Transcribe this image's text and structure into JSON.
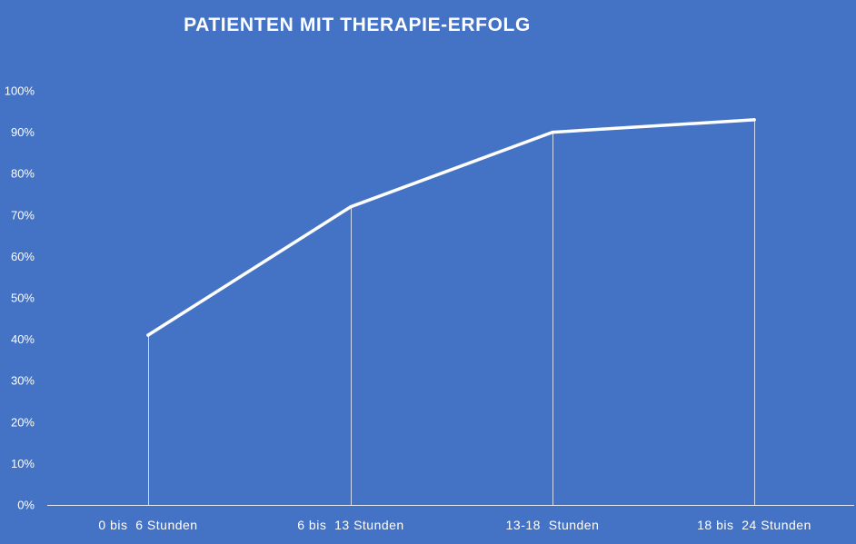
{
  "chart_data": {
    "type": "line",
    "title": "PATIENTEN  MIT THERAPIE-ERFOLG",
    "categories": [
      "0 bis  6 Stunden",
      "6 bis  13 Stunden",
      "13-18  Stunden",
      "18 bis  24 Stunden"
    ],
    "series": [
      {
        "values": [
          41,
          72,
          90,
          93
        ]
      }
    ],
    "y_ticks": [
      "0%",
      "10%",
      "20%",
      "30%",
      "40%",
      "50%",
      "60%",
      "70%",
      "80%",
      "90%",
      "100%"
    ],
    "ylim": [
      0,
      100
    ],
    "y_unit": "%",
    "grid": false,
    "legend": "none",
    "drop_lines": true,
    "colors": {
      "background": "#4472c4",
      "line": "#ffffff",
      "text": "#ffffff"
    }
  }
}
